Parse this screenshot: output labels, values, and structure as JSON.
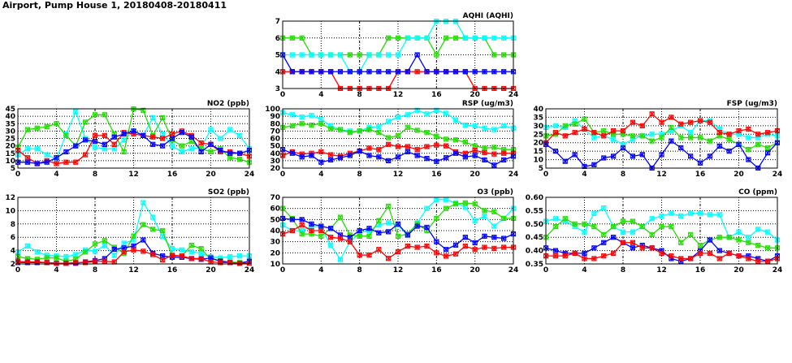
{
  "title": "Airport, Pump House 1, 20180408-20180411",
  "colors": {
    "red": "#ff0000",
    "green": "#22dd00",
    "cyan": "#00ffff",
    "blue": "#0000ff"
  },
  "chart_data": [
    {
      "type": "line",
      "title": "AQHI (AQHI)",
      "xlim": [
        0,
        24
      ],
      "ylim": [
        3,
        7
      ],
      "xticks": [
        0,
        4,
        8,
        12,
        16,
        20,
        24
      ],
      "yticks": [
        3,
        4,
        5,
        6,
        7
      ],
      "grid": true,
      "series": [
        {
          "color": "green",
          "values": [
            6,
            6,
            6,
            5,
            5,
            5,
            5,
            5,
            5,
            5,
            5,
            6,
            6,
            6,
            6,
            6,
            5,
            6,
            6,
            6,
            6,
            6,
            5,
            5,
            5
          ]
        },
        {
          "color": "cyan",
          "values": [
            5,
            5,
            5,
            5,
            5,
            5,
            5,
            4,
            4,
            5,
            5,
            5,
            5,
            6,
            6,
            6,
            7,
            7,
            7,
            6,
            6,
            6,
            6,
            6,
            6
          ]
        },
        {
          "color": "red",
          "values": [
            4,
            4,
            4,
            4,
            4,
            4,
            3,
            3,
            3,
            3,
            3,
            3,
            4,
            4,
            4,
            4,
            4,
            4,
            4,
            4,
            3,
            3,
            3,
            3,
            3
          ]
        },
        {
          "color": "blue",
          "values": [
            5,
            4,
            4,
            4,
            4,
            4,
            4,
            4,
            4,
            4,
            4,
            4,
            4,
            4,
            5,
            4,
            4,
            4,
            4,
            4,
            4,
            4,
            4,
            4,
            4
          ]
        }
      ]
    },
    {
      "type": "line",
      "title": "NO2 (ppb)",
      "xlim": [
        0,
        24
      ],
      "ylim": [
        5,
        45
      ],
      "xticks": [
        0,
        4,
        8,
        12,
        16,
        20,
        24
      ],
      "yticks": [
        5,
        10,
        15,
        20,
        25,
        30,
        35,
        40,
        45
      ],
      "grid": true,
      "series": [
        {
          "color": "cyan",
          "values": [
            14,
            18,
            18,
            14,
            11,
            28,
            43,
            25,
            19,
            18,
            18,
            24,
            30,
            27,
            39,
            28,
            20,
            16,
            18,
            19,
            31,
            25,
            31,
            27,
            18
          ]
        },
        {
          "color": "green",
          "values": [
            19,
            31,
            32,
            33,
            35,
            27,
            20,
            36,
            41,
            41,
            28,
            16,
            45,
            44,
            27,
            39,
            24,
            20,
            23,
            18,
            16,
            18,
            12,
            11,
            9
          ]
        },
        {
          "color": "red",
          "values": [
            17,
            12,
            8,
            10,
            8,
            9,
            9,
            14,
            27,
            27,
            21,
            29,
            28,
            27,
            26,
            25,
            28,
            30,
            27,
            22,
            21,
            16,
            16,
            15,
            13
          ]
        },
        {
          "color": "blue",
          "values": [
            9,
            9,
            8,
            9,
            12,
            16,
            20,
            24,
            23,
            21,
            26,
            28,
            30,
            27,
            21,
            20,
            25,
            29,
            26,
            16,
            21,
            17,
            15,
            15,
            17
          ]
        }
      ]
    },
    {
      "type": "line",
      "title": "RSP (ug/m3)",
      "xlim": [
        0,
        24
      ],
      "ylim": [
        20,
        100
      ],
      "xticks": [
        0,
        4,
        8,
        12,
        16,
        20,
        24
      ],
      "yticks": [
        20,
        30,
        40,
        50,
        60,
        70,
        80,
        90,
        100
      ],
      "grid": true,
      "series": [
        {
          "color": "cyan",
          "values": [
            95,
            92,
            89,
            91,
            86,
            77,
            72,
            70,
            70,
            75,
            76,
            83,
            89,
            92,
            98,
            93,
            98,
            94,
            85,
            78,
            77,
            74,
            72,
            77,
            74
          ]
        },
        {
          "color": "green",
          "values": [
            75,
            77,
            80,
            78,
            80,
            73,
            72,
            68,
            70,
            72,
            68,
            61,
            64,
            75,
            71,
            68,
            63,
            59,
            58,
            55,
            50,
            47,
            48,
            45,
            45
          ]
        },
        {
          "color": "red",
          "values": [
            37,
            42,
            39,
            40,
            42,
            38,
            36,
            40,
            43,
            47,
            45,
            52,
            49,
            49,
            45,
            49,
            51,
            50,
            42,
            40,
            44,
            41,
            39,
            40,
            40
          ]
        },
        {
          "color": "blue",
          "values": [
            45,
            40,
            35,
            37,
            28,
            31,
            34,
            37,
            43,
            37,
            35,
            30,
            35,
            42,
            37,
            33,
            29,
            34,
            40,
            35,
            37,
            31,
            24,
            31,
            36
          ]
        }
      ]
    },
    {
      "type": "line",
      "title": "FSP (ug/m3)",
      "xlim": [
        0,
        24
      ],
      "ylim": [
        5,
        40
      ],
      "xticks": [
        0,
        4,
        8,
        12,
        16,
        20,
        24
      ],
      "yticks": [
        5,
        10,
        15,
        20,
        25,
        30,
        35,
        40
      ],
      "grid": true,
      "series": [
        {
          "color": "cyan",
          "values": [
            29,
            30,
            29,
            33,
            28,
            23,
            24,
            22,
            19,
            22,
            24,
            25,
            25,
            27,
            30,
            26,
            33,
            33,
            28,
            25,
            25,
            23,
            23,
            25,
            24
          ]
        },
        {
          "color": "green",
          "values": [
            24,
            25,
            30,
            31,
            34,
            26,
            27,
            25,
            25,
            24,
            24,
            21,
            23,
            29,
            23,
            23,
            23,
            21,
            24,
            22,
            19,
            16,
            19,
            17,
            20
          ]
        },
        {
          "color": "red",
          "values": [
            20,
            26,
            24,
            26,
            28,
            26,
            24,
            27,
            27,
            32,
            30,
            37,
            32,
            35,
            31,
            32,
            33,
            32,
            26,
            25,
            27,
            28,
            25,
            26,
            27
          ]
        },
        {
          "color": "blue",
          "values": [
            19,
            15,
            9,
            13,
            6,
            7,
            11,
            12,
            17,
            12,
            13,
            5,
            13,
            21,
            17,
            12,
            8,
            12,
            18,
            15,
            19,
            10,
            5,
            14,
            20
          ]
        }
      ]
    },
    {
      "type": "line",
      "title": "SO2 (ppb)",
      "xlim": [
        0,
        24
      ],
      "ylim": [
        2,
        12
      ],
      "xticks": [
        0,
        4,
        8,
        12,
        16,
        20,
        24
      ],
      "yticks": [
        2,
        4,
        6,
        8,
        10,
        12
      ],
      "grid": true,
      "series": [
        {
          "color": "cyan",
          "values": [
            3.8,
            4.7,
            3.8,
            3.3,
            3.2,
            3.1,
            3.4,
            4.1,
            3.9,
            4.8,
            3.3,
            5.1,
            5.6,
            11.2,
            9,
            6.1,
            4.3,
            4.1,
            3.8,
            3.6,
            3.1,
            2.9,
            3.1,
            3.2,
            3.2
          ]
        },
        {
          "color": "green",
          "values": [
            3.1,
            2.8,
            2.7,
            2.9,
            2.9,
            2.4,
            2.7,
            3.8,
            5,
            5.5,
            4.5,
            3.6,
            6.2,
            7.9,
            7.2,
            7,
            3.2,
            3.2,
            4.8,
            4.3,
            2.7,
            2.5,
            2.3,
            2.2,
            2.4
          ]
        },
        {
          "color": "blue",
          "values": [
            2.2,
            2.2,
            2.2,
            2.2,
            2.1,
            2.1,
            2.1,
            2.3,
            2.5,
            2.8,
            4.2,
            4.4,
            4.7,
            5.6,
            3.6,
            3.2,
            3,
            3,
            2.8,
            2.7,
            2.9,
            2.4,
            2.2,
            2.1,
            2.4
          ]
        },
        {
          "color": "red",
          "values": [
            2.4,
            2.3,
            2.3,
            2.2,
            2.1,
            2.1,
            2.2,
            2.2,
            2.4,
            2.4,
            2.3,
            3.8,
            4.1,
            3.9,
            3.4,
            2.6,
            3.3,
            3.2,
            2.8,
            2.8,
            2.3,
            2.2,
            2.2,
            2.1,
            2.1
          ]
        }
      ]
    },
    {
      "type": "line",
      "title": "O3 (ppb)",
      "xlim": [
        0,
        24
      ],
      "ylim": [
        10,
        70
      ],
      "xticks": [
        0,
        4,
        8,
        12,
        16,
        20,
        24
      ],
      "yticks": [
        10,
        20,
        30,
        40,
        50,
        60,
        70
      ],
      "grid": true,
      "series": [
        {
          "color": "cyan",
          "values": [
            45,
            40,
            40,
            44,
            43,
            27,
            14,
            30,
            38,
            40,
            45,
            47,
            45,
            36,
            47,
            60,
            68,
            68,
            65,
            61,
            49,
            53,
            44,
            51,
            60
          ]
        },
        {
          "color": "green",
          "values": [
            60,
            51,
            37,
            37,
            35,
            42,
            52,
            36,
            35,
            35,
            49,
            62,
            35,
            37,
            46,
            40,
            51,
            60,
            64,
            65,
            64,
            58,
            57,
            51,
            51
          ]
        },
        {
          "color": "blue",
          "values": [
            51,
            50,
            50,
            46,
            44,
            42,
            36,
            34,
            40,
            42,
            38,
            39,
            46,
            36,
            44,
            43,
            30,
            23,
            27,
            34,
            29,
            35,
            34,
            33,
            37
          ]
        },
        {
          "color": "red",
          "values": [
            37,
            40,
            45,
            40,
            40,
            34,
            33,
            30,
            18,
            18,
            23,
            15,
            21,
            26,
            25,
            26,
            20,
            17,
            19,
            26,
            23,
            25,
            24,
            25,
            25
          ]
        }
      ]
    },
    {
      "type": "line",
      "title": "CO (ppm)",
      "xlim": [
        0,
        24
      ],
      "ylim": [
        0.35,
        0.6
      ],
      "xticks": [
        0,
        4,
        8,
        12,
        16,
        20,
        24
      ],
      "yticks": [
        0.35,
        0.4,
        0.45,
        0.5,
        0.55,
        0.6
      ],
      "ytick_decimals": 2,
      "grid": true,
      "series": [
        {
          "color": "cyan",
          "values": [
            0.51,
            0.52,
            0.51,
            0.49,
            0.47,
            0.54,
            0.56,
            0.49,
            0.47,
            0.47,
            0.49,
            0.52,
            0.53,
            0.54,
            0.53,
            0.54,
            0.54,
            0.535,
            0.535,
            0.45,
            0.47,
            0.45,
            0.48,
            0.47,
            0.44
          ]
        },
        {
          "color": "green",
          "values": [
            0.45,
            0.49,
            0.52,
            0.5,
            0.5,
            0.49,
            0.46,
            0.49,
            0.51,
            0.51,
            0.49,
            0.46,
            0.49,
            0.49,
            0.43,
            0.46,
            0.42,
            0.44,
            0.45,
            0.45,
            0.44,
            0.43,
            0.42,
            0.41,
            0.41
          ]
        },
        {
          "color": "blue",
          "values": [
            0.41,
            0.4,
            0.39,
            0.39,
            0.39,
            0.41,
            0.43,
            0.45,
            0.43,
            0.41,
            0.42,
            0.41,
            0.4,
            0.37,
            0.36,
            0.37,
            0.4,
            0.44,
            0.4,
            0.39,
            0.38,
            0.38,
            0.37,
            0.36,
            0.38
          ]
        },
        {
          "color": "red",
          "values": [
            0.38,
            0.38,
            0.38,
            0.39,
            0.37,
            0.37,
            0.38,
            0.39,
            0.43,
            0.43,
            0.41,
            0.41,
            0.39,
            0.38,
            0.37,
            0.37,
            0.39,
            0.39,
            0.37,
            0.39,
            0.38,
            0.37,
            0.36,
            0.36,
            0.37
          ]
        }
      ]
    }
  ]
}
